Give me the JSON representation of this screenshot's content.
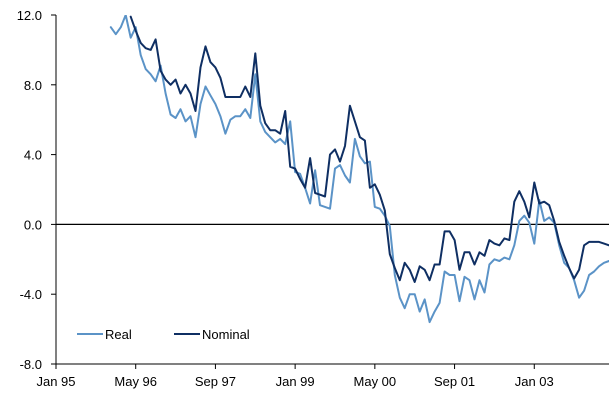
{
  "chart_data": {
    "type": "line",
    "title": "",
    "xlabel": "",
    "ylabel": "",
    "ylim": [
      -8,
      12
    ],
    "yticks": [
      -8,
      -4,
      0,
      4,
      8,
      12
    ],
    "ytick_labels": [
      "-8.0",
      "-4.0",
      "0.0",
      "4.0",
      "8.0",
      "12.0"
    ],
    "xlim": [
      "1995-01",
      "2004-04"
    ],
    "xticks": [
      "1995-01",
      "1996-05",
      "1997-09",
      "1999-01",
      "2000-05",
      "2001-09",
      "2003-01"
    ],
    "xtick_labels": [
      "Jan 95",
      "May 96",
      "Sep 97",
      "Jan 99",
      "May 00",
      "Sep 01",
      "Jan 03"
    ],
    "zero_line": true,
    "grid": false,
    "legend": {
      "position": "bottom-left",
      "entries": [
        "Real",
        "Nominal"
      ]
    },
    "colors": {
      "Real": "#5b93c7",
      "Nominal": "#0f2f63",
      "axis": "#000000"
    },
    "series": [
      {
        "name": "Real",
        "x": [
          "1995-12",
          "1996-01",
          "1996-02",
          "1996-03",
          "1996-04",
          "1996-05",
          "1996-06",
          "1996-07",
          "1996-08",
          "1996-09",
          "1996-10",
          "1996-11",
          "1996-12",
          "1997-01",
          "1997-02",
          "1997-03",
          "1997-04",
          "1997-05",
          "1997-06",
          "1997-07",
          "1997-08",
          "1997-09",
          "1997-10",
          "1997-11",
          "1997-12",
          "1998-01",
          "1998-02",
          "1998-03",
          "1998-04",
          "1998-05",
          "1998-06",
          "1998-07",
          "1998-08",
          "1998-09",
          "1998-10",
          "1998-11",
          "1998-12",
          "1999-01",
          "1999-02",
          "1999-03",
          "1999-04",
          "1999-05",
          "1999-06",
          "1999-07",
          "1999-08",
          "1999-09",
          "1999-10",
          "1999-11",
          "1999-12",
          "2000-01",
          "2000-02",
          "2000-03",
          "2000-04",
          "2000-05",
          "2000-06",
          "2000-07",
          "2000-08",
          "2000-09",
          "2000-10",
          "2000-11",
          "2000-12",
          "2001-01",
          "2001-02",
          "2001-03",
          "2001-04",
          "2001-05",
          "2001-06",
          "2001-07",
          "2001-08",
          "2001-09",
          "2001-10",
          "2001-11",
          "2001-12",
          "2002-01",
          "2002-02",
          "2002-03",
          "2002-04",
          "2002-05",
          "2002-06",
          "2002-07",
          "2002-08",
          "2002-09",
          "2002-10",
          "2002-11",
          "2002-12",
          "2003-01",
          "2003-02",
          "2003-03",
          "2003-04",
          "2003-05",
          "2003-06",
          "2003-07",
          "2003-08",
          "2003-09",
          "2003-10",
          "2003-11",
          "2003-12",
          "2004-01",
          "2004-02",
          "2004-03",
          "2004-04"
        ],
        "values": [
          11.3,
          10.9,
          11.3,
          12.0,
          10.7,
          11.3,
          9.7,
          8.9,
          8.6,
          8.2,
          9.1,
          7.5,
          6.3,
          6.1,
          6.6,
          5.9,
          6.2,
          5.0,
          6.9,
          7.9,
          7.4,
          6.9,
          6.2,
          5.2,
          6.0,
          6.2,
          6.2,
          6.6,
          6.1,
          8.6,
          5.9,
          5.3,
          5.0,
          4.7,
          4.9,
          4.6,
          5.9,
          3.0,
          2.9,
          2.1,
          1.2,
          3.1,
          1.1,
          1.0,
          0.9,
          3.2,
          3.4,
          2.8,
          2.4,
          4.9,
          3.9,
          3.5,
          3.6,
          1.0,
          0.9,
          0.5,
          -0.1,
          -2.9,
          -4.2,
          -4.8,
          -4.0,
          -4.0,
          -5.0,
          -4.3,
          -5.6,
          -5.0,
          -4.5,
          -2.7,
          -2.9,
          -2.9,
          -4.4,
          -3.0,
          -3.2,
          -4.3,
          -3.2,
          -3.9,
          -2.3,
          -2.0,
          -2.1,
          -1.9,
          -2.0,
          -1.2,
          0.2,
          0.5,
          0.1,
          -1.1,
          1.4,
          0.2,
          0.4,
          0.1,
          -1.2,
          -2.2,
          -2.5,
          -3.2,
          -4.2,
          -3.8,
          -2.9,
          -2.7,
          -2.4,
          -2.2,
          -2.1
        ]
      },
      {
        "name": "Nominal",
        "x": [
          "1996-04",
          "1996-05",
          "1996-06",
          "1996-07",
          "1996-08",
          "1996-09",
          "1996-10",
          "1996-11",
          "1996-12",
          "1997-01",
          "1997-02",
          "1997-03",
          "1997-04",
          "1997-05",
          "1997-06",
          "1997-07",
          "1997-08",
          "1997-09",
          "1997-10",
          "1997-11",
          "1997-12",
          "1998-01",
          "1998-02",
          "1998-03",
          "1998-04",
          "1998-05",
          "1998-06",
          "1998-07",
          "1998-08",
          "1998-09",
          "1998-10",
          "1998-11",
          "1998-12",
          "1999-01",
          "1999-02",
          "1999-03",
          "1999-04",
          "1999-05",
          "1999-06",
          "1999-07",
          "1999-08",
          "1999-09",
          "1999-10",
          "1999-11",
          "1999-12",
          "2000-01",
          "2000-02",
          "2000-03",
          "2000-04",
          "2000-05",
          "2000-06",
          "2000-07",
          "2000-08",
          "2000-09",
          "2000-10",
          "2000-11",
          "2000-12",
          "2001-01",
          "2001-02",
          "2001-03",
          "2001-04",
          "2001-05",
          "2001-06",
          "2001-07",
          "2001-08",
          "2001-09",
          "2001-10",
          "2001-11",
          "2001-12",
          "2002-01",
          "2002-02",
          "2002-03",
          "2002-04",
          "2002-05",
          "2002-06",
          "2002-07",
          "2002-08",
          "2002-09",
          "2002-10",
          "2002-11",
          "2002-12",
          "2003-01",
          "2003-02",
          "2003-03",
          "2003-04",
          "2003-05",
          "2003-06",
          "2003-07",
          "2003-08",
          "2003-09",
          "2003-10",
          "2003-11",
          "2003-12",
          "2004-01",
          "2004-02",
          "2004-03",
          "2004-04"
        ],
        "values": [
          11.9,
          11.1,
          10.4,
          10.1,
          10.0,
          10.6,
          8.8,
          8.3,
          8.0,
          8.3,
          7.5,
          8.0,
          7.5,
          6.5,
          9.0,
          10.2,
          9.3,
          9.0,
          8.4,
          7.3,
          7.3,
          7.3,
          7.3,
          7.9,
          7.3,
          9.8,
          6.8,
          5.8,
          5.4,
          5.4,
          5.2,
          6.5,
          3.3,
          3.2,
          2.6,
          2.1,
          3.8,
          1.8,
          1.7,
          1.6,
          4.0,
          4.3,
          3.6,
          4.5,
          6.8,
          5.9,
          5.0,
          4.8,
          2.1,
          2.3,
          1.7,
          0.8,
          -1.7,
          -2.5,
          -3.2,
          -2.2,
          -2.6,
          -3.3,
          -2.4,
          -2.6,
          -3.2,
          -2.3,
          -2.3,
          -0.4,
          -0.4,
          -0.9,
          -2.6,
          -1.6,
          -1.6,
          -2.3,
          -1.6,
          -1.8,
          -0.9,
          -1.1,
          -1.2,
          -0.8,
          -0.9,
          1.3,
          1.9,
          1.3,
          0.4,
          2.4,
          1.2,
          1.3,
          1.1,
          0.2,
          -1.0,
          -1.8,
          -2.5,
          -3.1,
          -2.6,
          -1.2,
          -1.0,
          -1.0,
          -1.0,
          -1.1,
          -1.2
        ]
      }
    ]
  }
}
